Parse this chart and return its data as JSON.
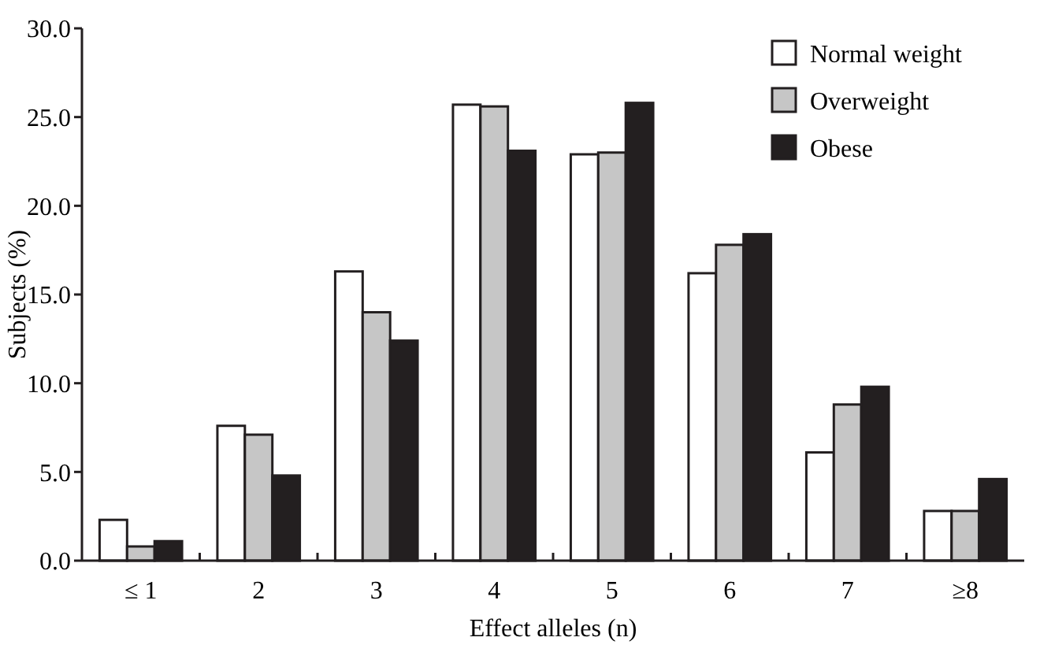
{
  "chart_data": {
    "type": "bar",
    "xlabel": "Effect alleles (n)",
    "ylabel": "Subjects (%)",
    "categories": [
      "≤ 1",
      "2",
      "3",
      "4",
      "5",
      "6",
      "7",
      "≥8"
    ],
    "series": [
      {
        "name": "Normal weight",
        "color": "#ffffff",
        "values": [
          2.3,
          7.6,
          16.3,
          25.7,
          22.9,
          16.2,
          6.1,
          2.8
        ]
      },
      {
        "name": "Overweight",
        "color": "#c6c6c6",
        "values": [
          0.8,
          7.1,
          14.0,
          25.6,
          23.0,
          17.8,
          8.8,
          2.8
        ]
      },
      {
        "name": "Obese",
        "color": "#231f20",
        "values": [
          1.1,
          4.8,
          12.4,
          23.1,
          25.8,
          18.4,
          9.8,
          4.6
        ]
      }
    ],
    "ylim": [
      0,
      30
    ],
    "yticks": [
      {
        "value": 0,
        "label": "0.0"
      },
      {
        "value": 5,
        "label": "5.0"
      },
      {
        "value": 10,
        "label": "10.0"
      },
      {
        "value": 15,
        "label": "15.0"
      },
      {
        "value": 20,
        "label": "20.0"
      },
      {
        "value": 25,
        "label": "25.0"
      },
      {
        "value": 30,
        "label": "30.0"
      }
    ],
    "legend": "top right"
  }
}
